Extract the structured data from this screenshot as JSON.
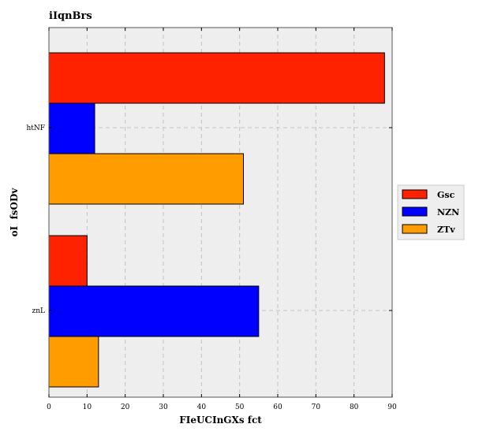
{
  "chart_data": {
    "type": "bar",
    "orientation": "horizontal",
    "title": "iIqnBrs",
    "xlabel": "FIeUCInGXs fct",
    "ylabel": "oI  fsODv",
    "categories": [
      "htNF",
      "znL"
    ],
    "series": [
      {
        "name": "Gsc",
        "values": [
          88,
          10
        ],
        "color": "#ff2200"
      },
      {
        "name": "NZN",
        "values": [
          12,
          55
        ],
        "color": "#0000ff"
      },
      {
        "name": "ZTv",
        "values": [
          51,
          13
        ],
        "color": "#ff9d00"
      }
    ],
    "xlim": [
      0,
      90
    ],
    "xticks": [
      0,
      10,
      20,
      30,
      40,
      50,
      60,
      70,
      80,
      90
    ],
    "grid": true,
    "legend_position": "right"
  }
}
